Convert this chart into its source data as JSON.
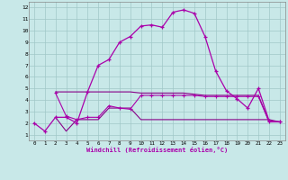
{
  "bg_color": "#c8e8e8",
  "grid_color": "#a0c8c8",
  "line_color": "#aa00aa",
  "line_color2": "#880088",
  "xlabel": "Windchill (Refroidissement éolien,°C)",
  "xlim": [
    -0.5,
    23.5
  ],
  "ylim": [
    0.5,
    12.5
  ],
  "yticks": [
    1,
    2,
    3,
    4,
    5,
    6,
    7,
    8,
    9,
    10,
    11,
    12
  ],
  "xticks": [
    0,
    1,
    2,
    3,
    4,
    5,
    6,
    7,
    8,
    9,
    10,
    11,
    12,
    13,
    14,
    15,
    16,
    17,
    18,
    19,
    20,
    21,
    22,
    23
  ],
  "curve1_x": [
    0,
    1,
    2,
    3,
    4,
    5,
    6,
    7,
    8,
    9,
    10,
    11,
    12,
    13,
    14,
    15,
    16,
    17,
    18,
    19,
    20,
    21,
    22,
    23
  ],
  "curve1_y": [
    2.0,
    1.3,
    2.5,
    2.5,
    2.0,
    4.7,
    7.0,
    7.5,
    9.0,
    9.5,
    10.4,
    10.5,
    10.3,
    11.6,
    11.8,
    11.5,
    9.5,
    6.5,
    4.8,
    4.1,
    3.3,
    5.0,
    2.2,
    2.1
  ],
  "curve2_x": [
    2,
    3,
    4,
    5,
    6,
    7,
    8,
    9,
    10,
    11,
    12,
    13,
    14,
    15,
    16,
    17,
    18,
    19,
    20,
    21,
    22,
    23
  ],
  "curve2_y": [
    4.7,
    4.7,
    4.7,
    4.7,
    4.7,
    4.7,
    4.7,
    4.7,
    4.6,
    4.6,
    4.6,
    4.6,
    4.6,
    4.5,
    4.4,
    4.4,
    4.4,
    4.4,
    4.4,
    4.4,
    2.1,
    2.1
  ],
  "curve3_x": [
    2,
    3,
    4,
    5,
    6,
    7,
    8,
    9,
    10,
    11,
    12,
    13,
    14,
    15,
    16,
    17,
    18,
    19,
    20,
    21,
    22,
    23
  ],
  "curve3_y": [
    2.5,
    1.3,
    2.3,
    2.3,
    2.3,
    3.3,
    3.3,
    3.3,
    2.3,
    2.3,
    2.3,
    2.3,
    2.3,
    2.3,
    2.3,
    2.3,
    2.3,
    2.3,
    2.3,
    2.3,
    2.3,
    2.1
  ],
  "curve4_x": [
    2,
    3,
    4,
    5,
    6,
    7,
    8,
    9,
    10,
    11,
    12,
    13,
    14,
    15,
    16,
    17,
    18,
    19,
    20,
    21,
    22,
    23
  ],
  "curve4_y": [
    4.6,
    2.6,
    2.3,
    2.5,
    2.5,
    3.5,
    3.3,
    3.2,
    4.4,
    4.4,
    4.4,
    4.4,
    4.4,
    4.4,
    4.3,
    4.3,
    4.3,
    4.3,
    4.3,
    4.3,
    2.1,
    2.1
  ]
}
